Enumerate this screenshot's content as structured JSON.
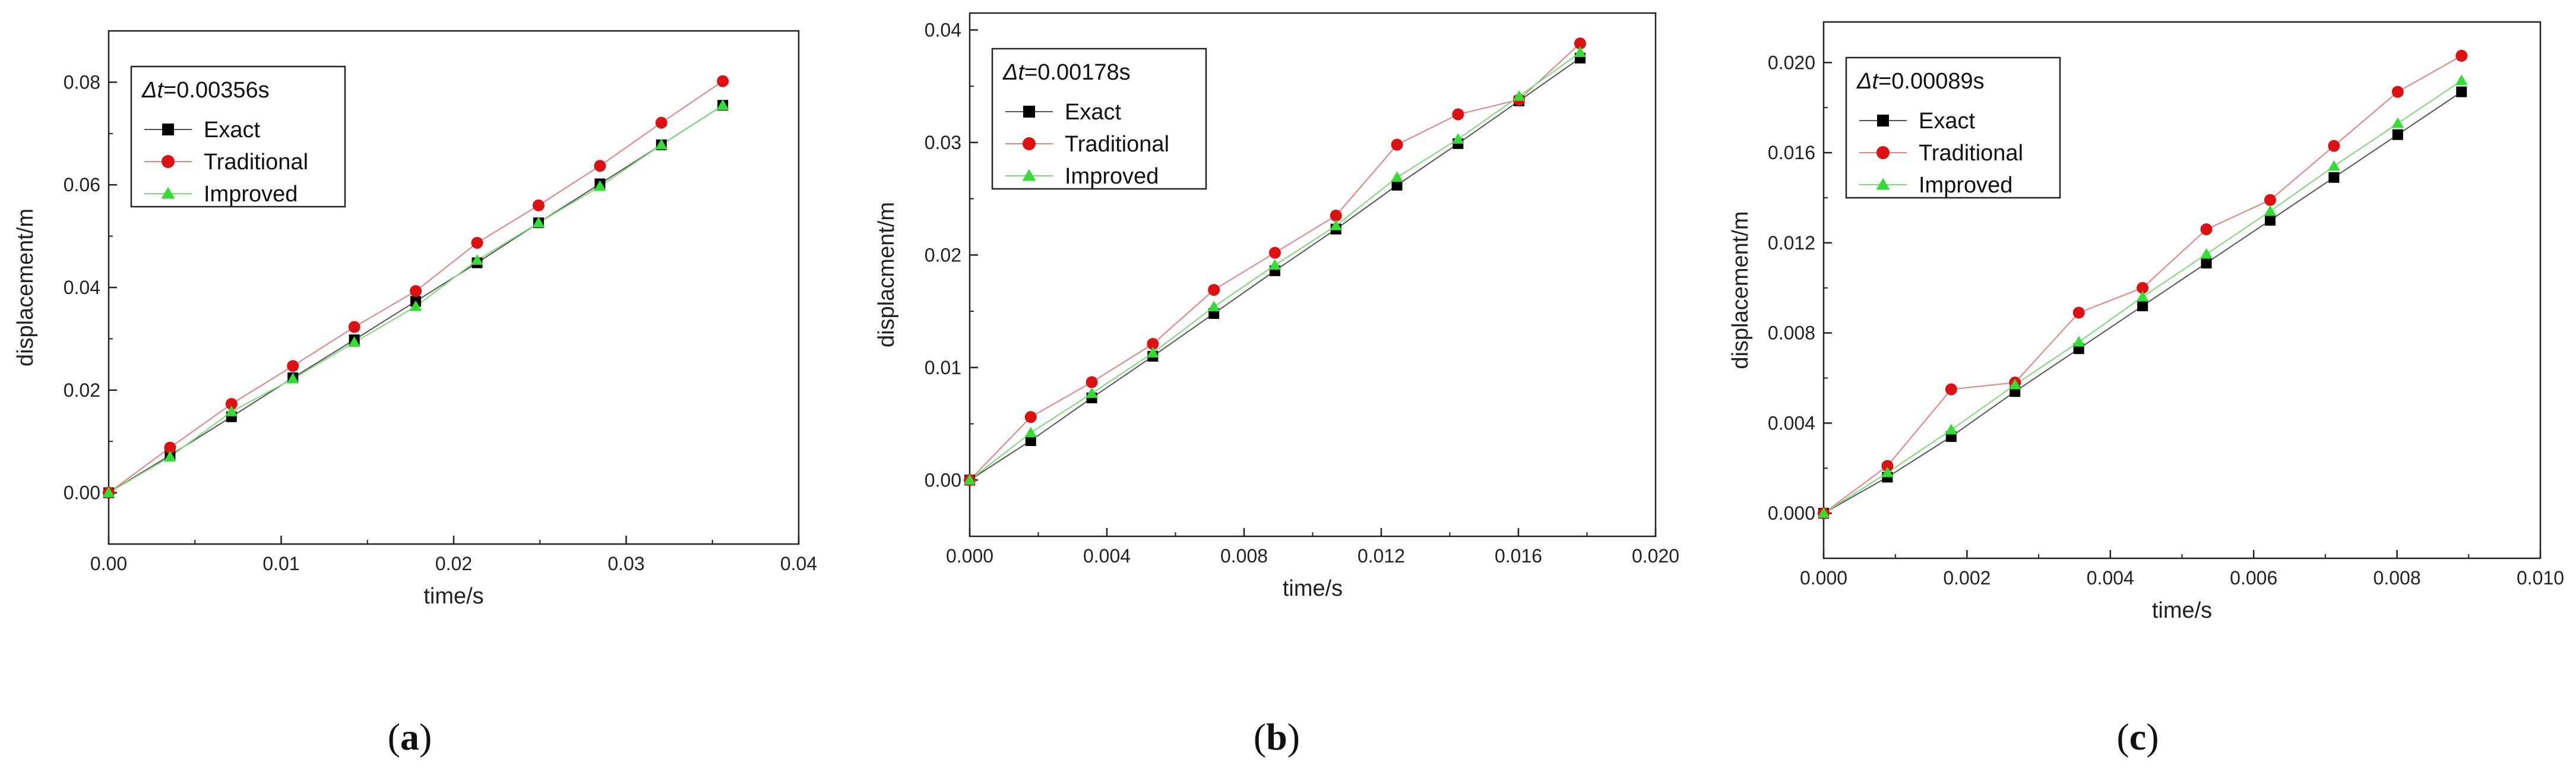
{
  "colors": {
    "exact": "#000000",
    "traditional": "#dd1111",
    "improved": "#33dd33",
    "traditional_line": "#e88080",
    "improved_line": "#77dd77",
    "exact_line": "#555555",
    "axis": "#222222"
  },
  "chart_data": [
    {
      "type": "line",
      "caption": "a",
      "title": "",
      "legend_title": "=0.00356s",
      "legend_title_prefix": "Δt",
      "legend_placement": "top-left",
      "xlabel": "time/s",
      "ylabel": "displacement/m",
      "xlim": [
        0,
        0.04
      ],
      "ylim": [
        -0.01,
        0.09
      ],
      "xticks": [
        0,
        0.01,
        0.02,
        0.03,
        0.04
      ],
      "xtick_labels": [
        "0.00",
        "0.01",
        "0.02",
        "0.03",
        "0.04"
      ],
      "yticks": [
        0,
        0.02,
        0.04,
        0.06,
        0.08
      ],
      "ytick_labels": [
        "0.00",
        "0.02",
        "0.04",
        "0.06",
        "0.08"
      ],
      "x": [
        0,
        0.00356,
        0.00712,
        0.01068,
        0.01424,
        0.0178,
        0.02136,
        0.02492,
        0.02848,
        0.03204,
        0.0356
      ],
      "series": [
        {
          "name": "Exact",
          "marker": "square",
          "values": [
            0,
            0.0073,
            0.0148,
            0.0224,
            0.0298,
            0.0373,
            0.0448,
            0.0526,
            0.0602,
            0.0678,
            0.0755
          ]
        },
        {
          "name": "Traditional",
          "marker": "circle",
          "values": [
            0,
            0.0088,
            0.0173,
            0.0247,
            0.0323,
            0.0393,
            0.0487,
            0.056,
            0.0637,
            0.0721,
            0.0802
          ]
        },
        {
          "name": "Improved",
          "marker": "triangle",
          "values": [
            0,
            0.007,
            0.0158,
            0.0222,
            0.0293,
            0.0363,
            0.0453,
            0.0526,
            0.0597,
            0.0678,
            0.0755
          ]
        }
      ]
    },
    {
      "type": "line",
      "caption": "b",
      "title": "",
      "legend_title": "=0.00178s",
      "legend_title_prefix": "Δt",
      "legend_placement": "top-left",
      "xlabel": "time/s",
      "ylabel": "displacment/m",
      "xlim": [
        0,
        0.02
      ],
      "ylim": [
        -0.005,
        0.0415
      ],
      "xticks": [
        0,
        0.004,
        0.008,
        0.012,
        0.016,
        0.02
      ],
      "xtick_labels": [
        "0.000",
        "0.004",
        "0.008",
        "0.012",
        "0.016",
        "0.020"
      ],
      "yticks": [
        0,
        0.01,
        0.02,
        0.03,
        0.04
      ],
      "ytick_labels": [
        "0.00",
        "0.01",
        "0.02",
        "0.03",
        "0.04"
      ],
      "x": [
        0,
        0.00178,
        0.00356,
        0.00534,
        0.00712,
        0.0089,
        0.01068,
        0.01246,
        0.01424,
        0.01602,
        0.0178
      ],
      "series": [
        {
          "name": "Exact",
          "marker": "square",
          "values": [
            0,
            0.0035,
            0.0073,
            0.011,
            0.0148,
            0.0186,
            0.0223,
            0.0262,
            0.0299,
            0.0337,
            0.0375
          ]
        },
        {
          "name": "Traditional",
          "marker": "circle",
          "values": [
            0,
            0.0056,
            0.0087,
            0.0121,
            0.0169,
            0.0202,
            0.0235,
            0.0298,
            0.0325,
            0.0338,
            0.0388
          ]
        },
        {
          "name": "Improved",
          "marker": "triangle",
          "values": [
            0,
            0.0042,
            0.0077,
            0.0113,
            0.0154,
            0.0191,
            0.0226,
            0.0269,
            0.0303,
            0.0341,
            0.038
          ]
        }
      ]
    },
    {
      "type": "line",
      "caption": "c",
      "title": "",
      "legend_title": "=0.00089s",
      "legend_title_prefix": "Δt",
      "legend_placement": "top-left",
      "xlabel": "time/s",
      "ylabel": "displacement/m",
      "xlim": [
        0,
        0.01
      ],
      "ylim": [
        -0.002,
        0.0218
      ],
      "xticks": [
        0,
        0.002,
        0.004,
        0.006,
        0.008,
        0.01
      ],
      "xtick_labels": [
        "0.000",
        "0.002",
        "0.004",
        "0.006",
        "0.008",
        "0.010"
      ],
      "yticks": [
        0,
        0.004,
        0.008,
        0.012,
        0.016,
        0.02
      ],
      "ytick_labels": [
        "0.000",
        "0.004",
        "0.008",
        "0.012",
        "0.016",
        "0.020"
      ],
      "x": [
        0,
        0.00089,
        0.00178,
        0.00267,
        0.00356,
        0.00445,
        0.00534,
        0.00623,
        0.00712,
        0.00801,
        0.0089
      ],
      "series": [
        {
          "name": "Exact",
          "marker": "square",
          "values": [
            0,
            0.0016,
            0.0034,
            0.0054,
            0.0073,
            0.0092,
            0.0111,
            0.013,
            0.0149,
            0.0168,
            0.0187
          ]
        },
        {
          "name": "Traditional",
          "marker": "circle",
          "values": [
            0,
            0.0021,
            0.0055,
            0.0058,
            0.0089,
            0.01,
            0.0126,
            0.0139,
            0.0163,
            0.0187,
            0.0203
          ]
        },
        {
          "name": "Improved",
          "marker": "triangle",
          "values": [
            0,
            0.0018,
            0.0037,
            0.0057,
            0.0076,
            0.0096,
            0.0115,
            0.0134,
            0.0154,
            0.0173,
            0.0192
          ]
        }
      ]
    }
  ]
}
